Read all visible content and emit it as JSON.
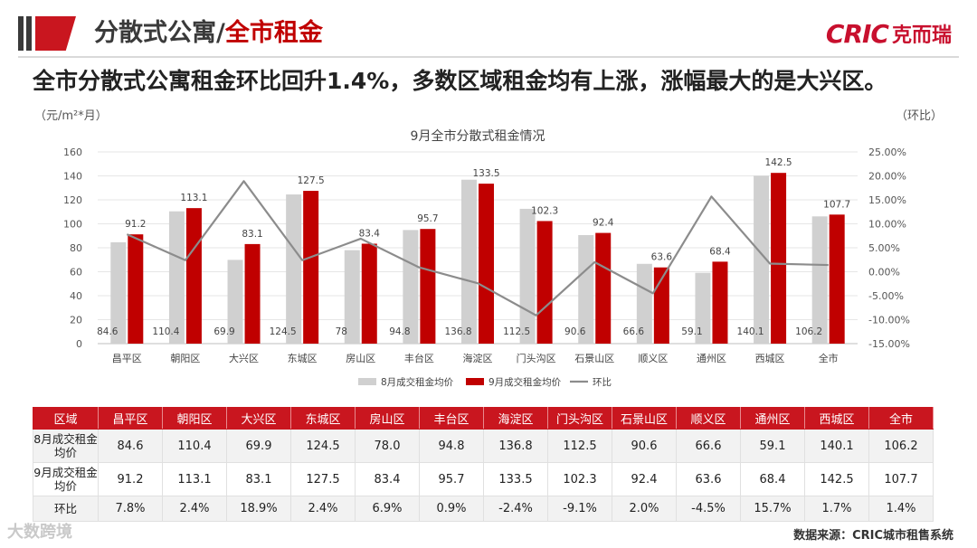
{
  "header": {
    "title_part1": "分散式公寓/",
    "title_part2": "全市租金",
    "logo_latin": "CRIC",
    "logo_cn": "克而瑞"
  },
  "headline": "全市分散式公寓租金环比回升1.4%，多数区域租金均有上涨，涨幅最大的是大兴区。",
  "units": {
    "left": "（元/m²*月）",
    "right": "（环比）"
  },
  "colors": {
    "august_bar": "#d0d0d0",
    "september_bar": "#c00000",
    "mom_line": "#8c8c8c",
    "accent": "#c9161f",
    "grid": "#e6e6e6"
  },
  "chart_data": {
    "type": "bar",
    "title": "9月全市分散式租金情况",
    "categories": [
      "昌平区",
      "朝阳区",
      "大兴区",
      "东城区",
      "房山区",
      "丰台区",
      "海淀区",
      "门头沟区",
      "石景山区",
      "顺义区",
      "通州区",
      "西城区",
      "全市"
    ],
    "series": [
      {
        "name": "8月成交租金均价",
        "type": "bar",
        "values": [
          84.6,
          110.4,
          69.9,
          124.5,
          78,
          94.8,
          136.8,
          112.5,
          90.6,
          66.6,
          59.1,
          140.1,
          106.2
        ],
        "labels": [
          "84.6",
          "110.4",
          "69.9",
          "124.5",
          "78",
          "94.8",
          "136.8",
          "112.5",
          "90.6",
          "66.6",
          "59.1",
          "140.1",
          "106.2"
        ]
      },
      {
        "name": "9月成交租金均价",
        "type": "bar",
        "values": [
          91.2,
          113.1,
          83.1,
          127.5,
          83.4,
          95.7,
          133.5,
          102.3,
          92.4,
          63.6,
          68.4,
          142.5,
          107.7
        ],
        "labels": [
          "91.2",
          "113.1",
          "83.1",
          "127.5",
          "83.4",
          "95.7",
          "133.5",
          "102.3",
          "92.4",
          "63.6",
          "68.4",
          "142.5",
          "107.7"
        ]
      },
      {
        "name": "环比",
        "type": "line",
        "axis": "right",
        "values": [
          7.8,
          2.4,
          18.9,
          2.4,
          6.9,
          0.9,
          -2.4,
          -9.1,
          2.0,
          -4.5,
          15.7,
          1.7,
          1.4
        ]
      }
    ],
    "ylim": [
      0,
      160
    ],
    "yticks": [
      "0",
      "20",
      "40",
      "60",
      "80",
      "100",
      "120",
      "140",
      "160"
    ],
    "y2lim": [
      -15,
      25
    ],
    "y2ticks": [
      "-15.00%",
      "-10.00%",
      "-5.00%",
      "0.00%",
      "5.00%",
      "10.00%",
      "15.00%",
      "20.00%",
      "25.00%"
    ],
    "legend": "bottom",
    "grid": true
  },
  "table": {
    "header": [
      "区域",
      "昌平区",
      "朝阳区",
      "大兴区",
      "东城区",
      "房山区",
      "丰台区",
      "海淀区",
      "门头沟区",
      "石景山区",
      "顺义区",
      "通州区",
      "西城区",
      "全市"
    ],
    "rows": [
      {
        "label": "8月成交租金均价",
        "values": [
          "84.6",
          "110.4",
          "69.9",
          "124.5",
          "78.0",
          "94.8",
          "136.8",
          "112.5",
          "90.6",
          "66.6",
          "59.1",
          "140.1",
          "106.2"
        ]
      },
      {
        "label": "9月成交租金均价",
        "values": [
          "91.2",
          "113.1",
          "83.1",
          "127.5",
          "83.4",
          "95.7",
          "133.5",
          "102.3",
          "92.4",
          "63.6",
          "68.4",
          "142.5",
          "107.7"
        ]
      },
      {
        "label": "环比",
        "values": [
          "7.8%",
          "2.4%",
          "18.9%",
          "2.4%",
          "6.9%",
          "0.9%",
          "-2.4%",
          "-9.1%",
          "2.0%",
          "-4.5%",
          "15.7%",
          "1.7%",
          "1.4%"
        ]
      }
    ]
  },
  "source": "数据来源：CRIC城市租售系统",
  "watermark": "大数跨境"
}
